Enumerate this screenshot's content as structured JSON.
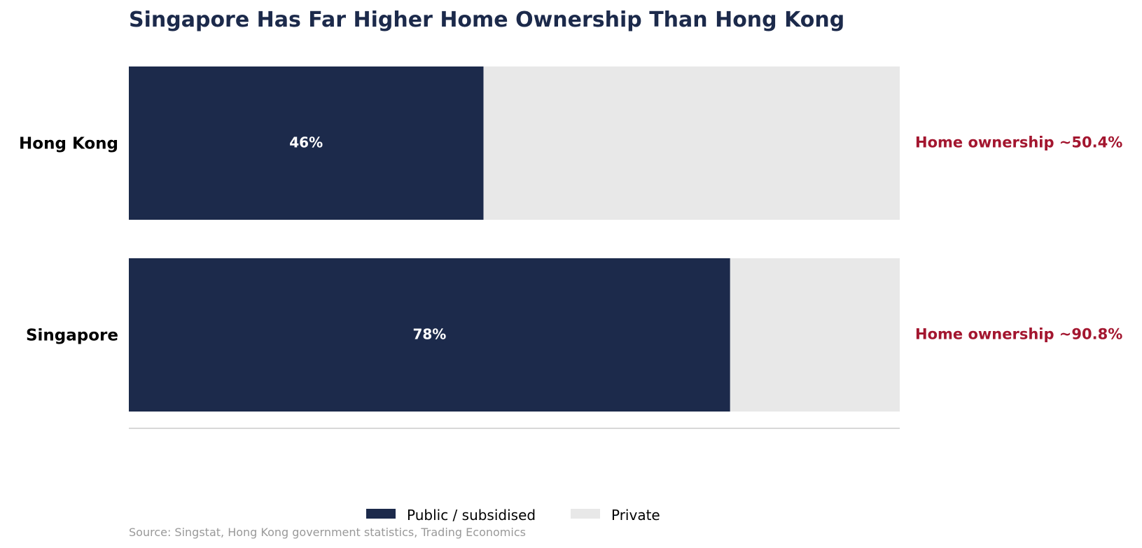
{
  "chart_data": {
    "type": "bar",
    "orientation": "horizontal",
    "stacked": true,
    "title": "Singapore Has Far Higher Home Ownership Than Hong Kong",
    "categories": [
      "Hong Kong",
      "Singapore"
    ],
    "series": [
      {
        "name": "Public / subsidised",
        "values": [
          46,
          78
        ],
        "color": "#1c2a4b"
      },
      {
        "name": "Private",
        "values": [
          54,
          22
        ],
        "color": "#e8e8e8"
      }
    ],
    "bar_labels": [
      "46%",
      "78%"
    ],
    "annotations": [
      "Home ownership ~50.4%",
      "Home ownership ~90.8%"
    ],
    "xlim": [
      0,
      100
    ],
    "grid": false,
    "legend_position": "bottom-center",
    "source": "Source: Singstat, Hong Kong government statistics, Trading Economics"
  },
  "colors": {
    "title": "#1c2a4b",
    "annotation": "#a3162f",
    "bar_label": "#ffffff",
    "source": "#999999",
    "baseline": "#cccccc"
  }
}
